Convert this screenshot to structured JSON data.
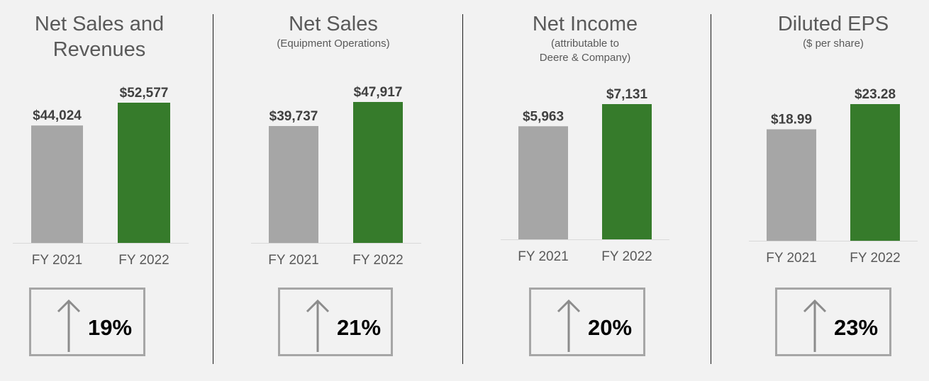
{
  "colors": {
    "fy2021": "#a6a6a6",
    "fy2022": "#367b2b",
    "text": "#595959",
    "value": "#404040"
  },
  "chart_data": [
    {
      "type": "bar",
      "title": "Net Sales and\nRevenues",
      "subtitle": "",
      "categories": [
        "FY 2021",
        "FY 2022"
      ],
      "values": [
        44024,
        52577
      ],
      "value_labels": [
        "$44,024",
        "$52,577"
      ],
      "change": "19%",
      "change_icon": "up-arrow-icon"
    },
    {
      "type": "bar",
      "title": "Net Sales",
      "subtitle": "(Equipment Operations)",
      "categories": [
        "FY 2021",
        "FY 2022"
      ],
      "values": [
        39737,
        47917
      ],
      "value_labels": [
        "$39,737",
        "$47,917"
      ],
      "change": "21%",
      "change_icon": "up-arrow-icon"
    },
    {
      "type": "bar",
      "title": "Net Income",
      "subtitle": "(attributable to\nDeere & Company)",
      "categories": [
        "FY 2021",
        "FY 2022"
      ],
      "values": [
        5963,
        7131
      ],
      "value_labels": [
        "$5,963",
        "$7,131"
      ],
      "change": "20%",
      "change_icon": "up-arrow-icon"
    },
    {
      "type": "bar",
      "title": "Diluted EPS",
      "subtitle": "($ per share)",
      "categories": [
        "FY 2021",
        "FY 2022"
      ],
      "values": [
        18.99,
        23.28
      ],
      "value_labels": [
        "$18.99",
        "$23.28"
      ],
      "change": "23%",
      "change_icon": "up-arrow-icon"
    }
  ]
}
